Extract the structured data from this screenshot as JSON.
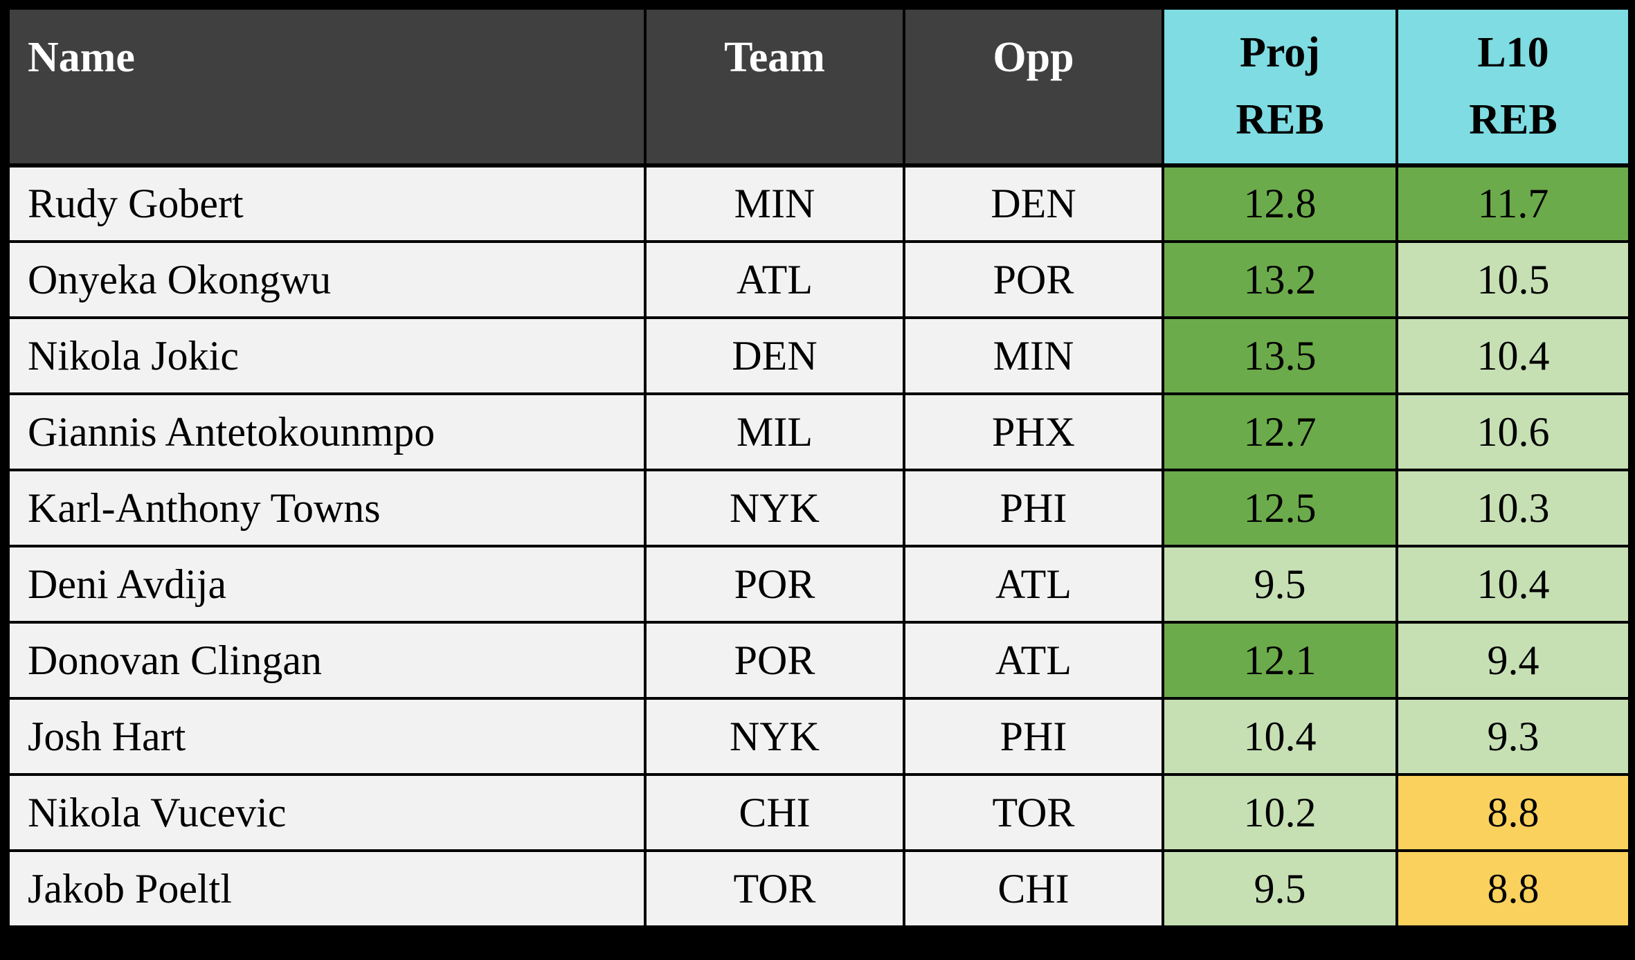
{
  "colors": {
    "page_bg": "#000000",
    "header_dark_bg": "#404040",
    "header_dark_text": "#FFFFFF",
    "stat_header_bg": "#7EDCE2",
    "row_bg": "#F2F2F2",
    "border": "#000000",
    "dark_green": "#6CAB4B",
    "light_green": "#C6E0B4",
    "yellow": "#FBD15E"
  },
  "table": {
    "headers": [
      {
        "label": "Name"
      },
      {
        "label": "Team"
      },
      {
        "label": "Opp"
      },
      {
        "label": "Proj\nREB"
      },
      {
        "label": "L10\nREB"
      }
    ]
  },
  "chart_data": {
    "type": "table",
    "columns": [
      "Name",
      "Team",
      "Opp",
      "Proj REB",
      "L10 REB"
    ],
    "rows": [
      {
        "name": "Rudy Gobert",
        "team": "MIN",
        "opp": "DEN",
        "proj_reb": 12.8,
        "l10_reb": 11.7,
        "proj_fill": "dark_green",
        "l10_fill": "dark_green"
      },
      {
        "name": "Onyeka Okongwu",
        "team": "ATL",
        "opp": "POR",
        "proj_reb": 13.2,
        "l10_reb": 10.5,
        "proj_fill": "dark_green",
        "l10_fill": "light_green"
      },
      {
        "name": "Nikola Jokic",
        "team": "DEN",
        "opp": "MIN",
        "proj_reb": 13.5,
        "l10_reb": 10.4,
        "proj_fill": "dark_green",
        "l10_fill": "light_green"
      },
      {
        "name": "Giannis Antetokounmpo",
        "team": "MIL",
        "opp": "PHX",
        "proj_reb": 12.7,
        "l10_reb": 10.6,
        "proj_fill": "dark_green",
        "l10_fill": "light_green"
      },
      {
        "name": "Karl-Anthony Towns",
        "team": "NYK",
        "opp": "PHI",
        "proj_reb": 12.5,
        "l10_reb": 10.3,
        "proj_fill": "dark_green",
        "l10_fill": "light_green"
      },
      {
        "name": "Deni Avdija",
        "team": "POR",
        "opp": "ATL",
        "proj_reb": 9.5,
        "l10_reb": 10.4,
        "proj_fill": "light_green",
        "l10_fill": "light_green"
      },
      {
        "name": "Donovan Clingan",
        "team": "POR",
        "opp": "ATL",
        "proj_reb": 12.1,
        "l10_reb": 9.4,
        "proj_fill": "dark_green",
        "l10_fill": "light_green"
      },
      {
        "name": "Josh Hart",
        "team": "NYK",
        "opp": "PHI",
        "proj_reb": 10.4,
        "l10_reb": 9.3,
        "proj_fill": "light_green",
        "l10_fill": "light_green"
      },
      {
        "name": "Nikola Vucevic",
        "team": "CHI",
        "opp": "TOR",
        "proj_reb": 10.2,
        "l10_reb": 8.8,
        "proj_fill": "light_green",
        "l10_fill": "yellow"
      },
      {
        "name": "Jakob Poeltl",
        "team": "TOR",
        "opp": "CHI",
        "proj_reb": 9.5,
        "l10_reb": 8.8,
        "proj_fill": "light_green",
        "l10_fill": "yellow"
      }
    ]
  }
}
